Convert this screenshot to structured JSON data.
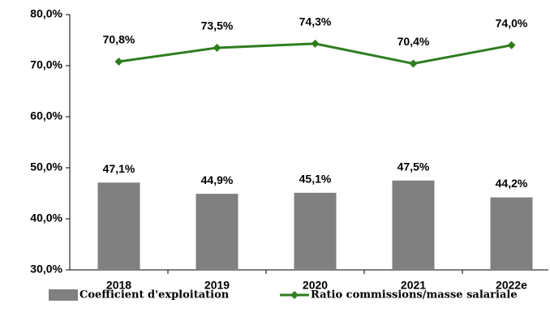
{
  "chart_data": {
    "type": "combo",
    "categories": [
      "2018",
      "2019",
      "2020",
      "2021",
      "2022e"
    ],
    "series": [
      {
        "name": "Coefficient d'exploitation",
        "type": "bar",
        "color": "#808080",
        "values": [
          47.1,
          44.9,
          45.1,
          47.5,
          44.2
        ],
        "value_labels": [
          "47,1%",
          "44,9%",
          "45,1%",
          "47,5%",
          "44,2%"
        ]
      },
      {
        "name": "Ratio commissions/masse salariale",
        "type": "line",
        "color": "#2e7d1e",
        "values": [
          70.8,
          73.5,
          74.3,
          70.4,
          74.0
        ],
        "value_labels": [
          "70,8%",
          "73,5%",
          "74,3%",
          "70,4%",
          "74,0%"
        ]
      }
    ],
    "ylim": [
      30,
      80
    ],
    "yticks": [
      {
        "value": 30,
        "label": "30,0%"
      },
      {
        "value": 40,
        "label": "40,0%"
      },
      {
        "value": 50,
        "label": "50,0%"
      },
      {
        "value": 60,
        "label": "60,0%"
      },
      {
        "value": 70,
        "label": "70,0%"
      },
      {
        "value": 80,
        "label": "80,0%"
      }
    ],
    "legend": "bottom"
  }
}
